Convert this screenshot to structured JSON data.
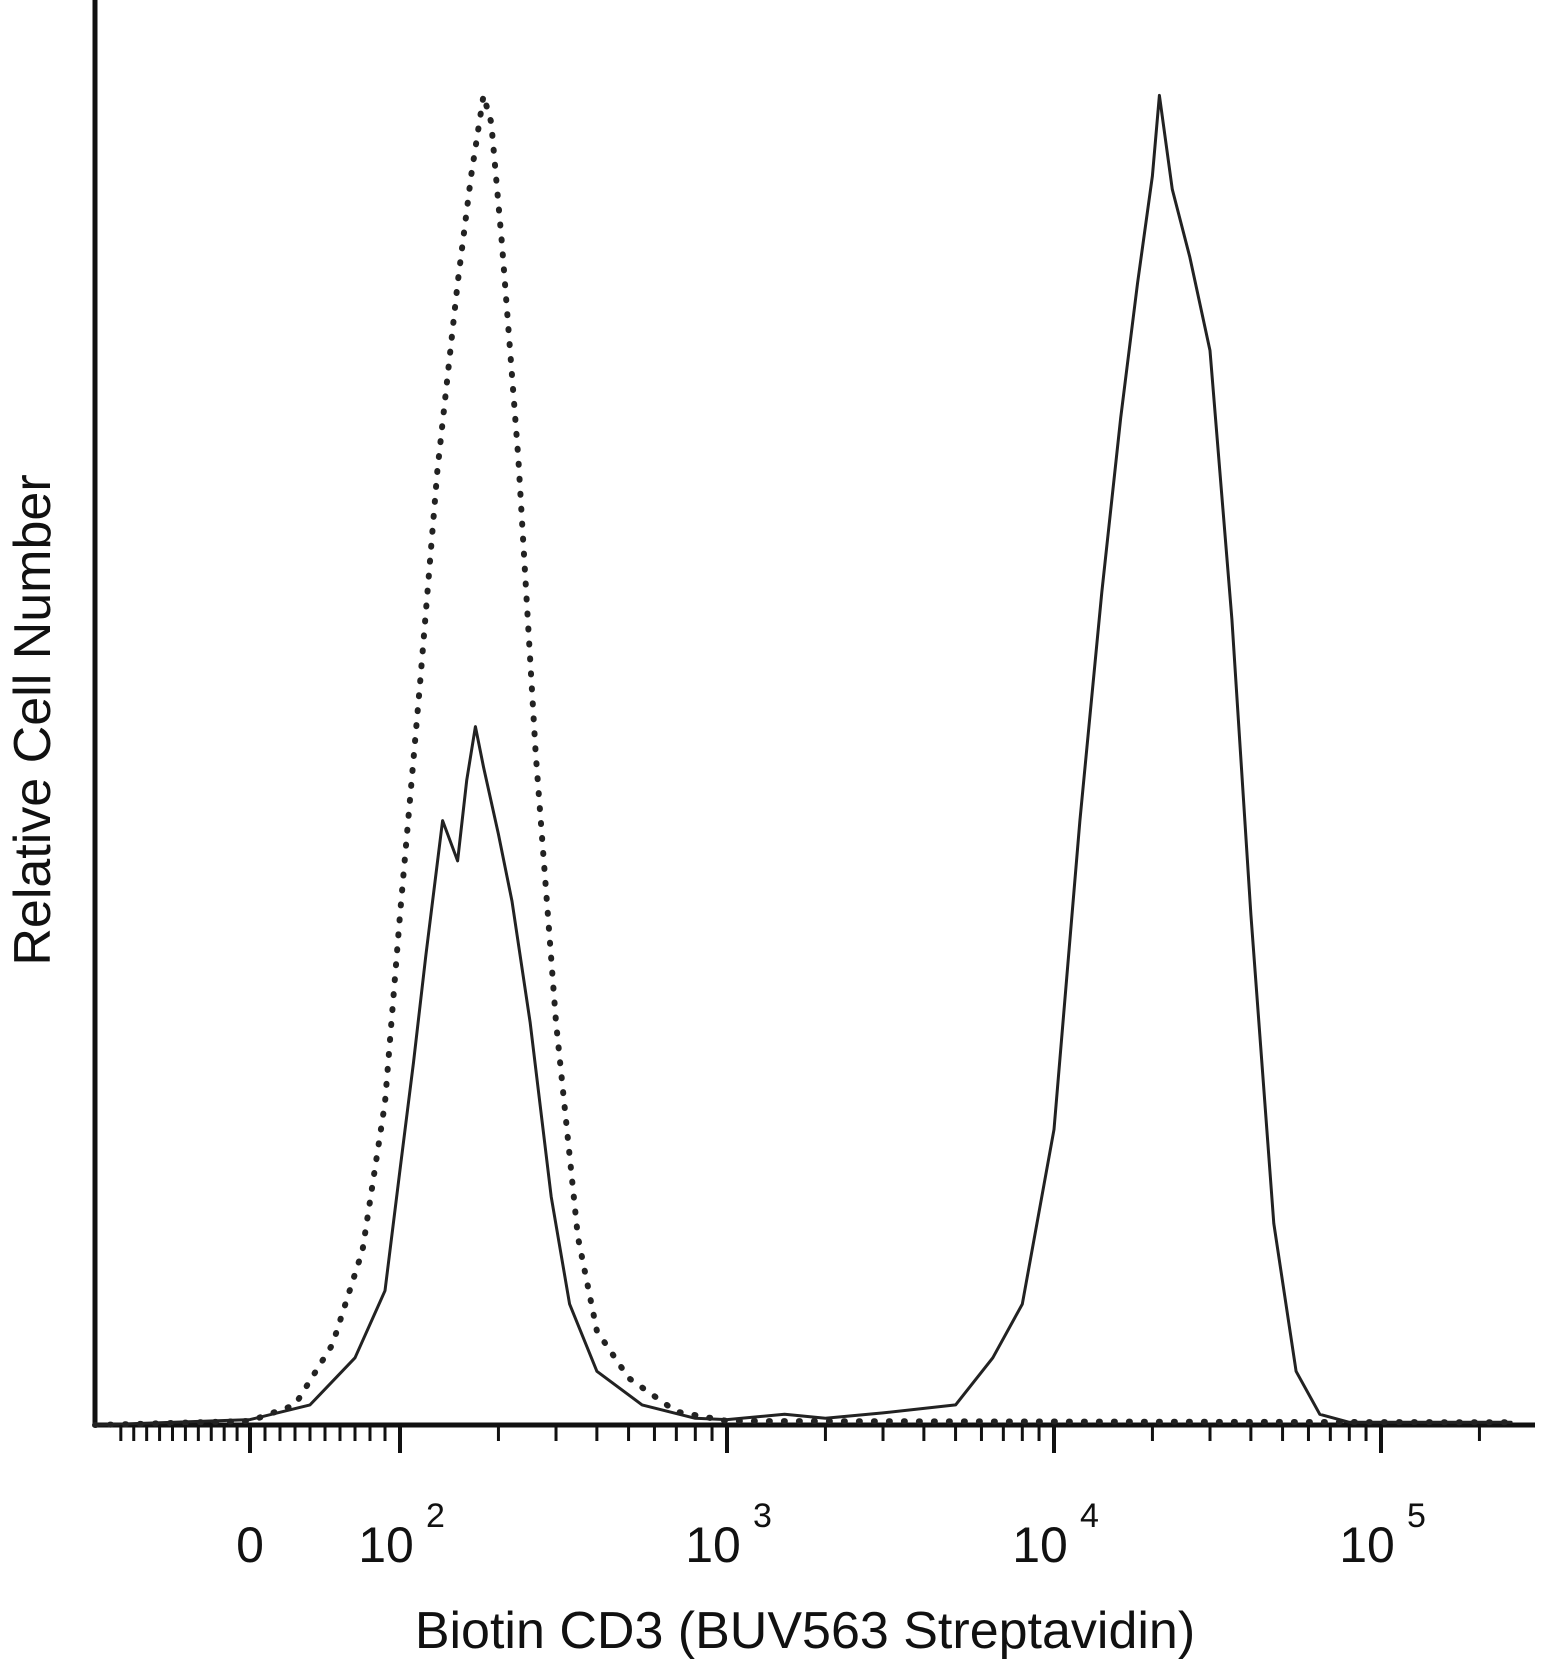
{
  "chart_data": {
    "type": "line",
    "title": "",
    "xlabel": "Biotin CD3 (BUV563 Streptavidin)",
    "ylabel": "Relative Cell Number",
    "x_scale": "biexponential (linear near 0, log above 10^2)",
    "x_ticks": [
      {
        "value": 0,
        "base": "0",
        "exp": ""
      },
      {
        "value": 100,
        "base": "10",
        "exp": "2"
      },
      {
        "value": 1000,
        "base": "10",
        "exp": "3"
      },
      {
        "value": 10000,
        "base": "10",
        "exp": "4"
      },
      {
        "value": 100000,
        "base": "10",
        "exp": "5"
      }
    ],
    "xlim": [
      -120,
      250000
    ],
    "ylim": [
      0,
      100
    ],
    "grid": false,
    "legend": "none",
    "colors": {
      "line": "#222222",
      "axis": "#111111"
    },
    "series": [
      {
        "style": "dotted",
        "points": [
          [
            -120,
            0
          ],
          [
            0,
            0.3
          ],
          [
            30,
            1.5
          ],
          [
            55,
            6
          ],
          [
            75,
            13
          ],
          [
            90,
            24
          ],
          [
            100,
            38
          ],
          [
            115,
            55
          ],
          [
            130,
            71
          ],
          [
            150,
            85
          ],
          [
            165,
            93
          ],
          [
            180,
            99
          ],
          [
            190,
            97
          ],
          [
            205,
            88
          ],
          [
            230,
            72
          ],
          [
            260,
            50
          ],
          [
            300,
            30
          ],
          [
            350,
            14
          ],
          [
            400,
            7
          ],
          [
            500,
            3.5
          ],
          [
            700,
            1
          ],
          [
            1000,
            0.3
          ],
          [
            250000,
            0.2
          ]
        ]
      },
      {
        "style": "solid",
        "points": [
          [
            -120,
            0
          ],
          [
            0,
            0.4
          ],
          [
            40,
            1.5
          ],
          [
            70,
            5
          ],
          [
            90,
            10
          ],
          [
            100,
            19
          ],
          [
            110,
            27
          ],
          [
            120,
            35
          ],
          [
            135,
            45
          ],
          [
            150,
            42
          ],
          [
            160,
            48
          ],
          [
            170,
            52
          ],
          [
            180,
            49
          ],
          [
            200,
            44
          ],
          [
            220,
            39
          ],
          [
            250,
            30
          ],
          [
            290,
            17
          ],
          [
            330,
            9
          ],
          [
            400,
            4
          ],
          [
            550,
            1.5
          ],
          [
            800,
            0.5
          ],
          [
            1000,
            0.4
          ],
          [
            1500,
            0.8
          ],
          [
            2000,
            0.5
          ],
          [
            3000,
            0.9
          ],
          [
            5000,
            1.5
          ],
          [
            6500,
            5
          ],
          [
            8000,
            9
          ],
          [
            10000,
            22
          ],
          [
            12000,
            45
          ],
          [
            14000,
            62
          ],
          [
            16000,
            75
          ],
          [
            18000,
            85
          ],
          [
            20000,
            93
          ],
          [
            21000,
            99
          ],
          [
            23000,
            92
          ],
          [
            26000,
            87
          ],
          [
            30000,
            80
          ],
          [
            35000,
            60
          ],
          [
            40000,
            38
          ],
          [
            47000,
            15
          ],
          [
            55000,
            4
          ],
          [
            65000,
            0.8
          ],
          [
            80000,
            0.2
          ],
          [
            250000,
            0.2
          ]
        ]
      }
    ]
  }
}
